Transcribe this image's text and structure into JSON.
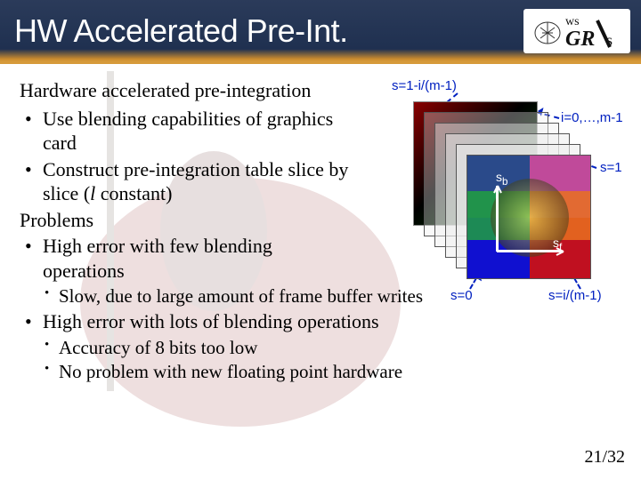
{
  "header": {
    "title": "HW Accelerated Pre-Int.",
    "logo_text_1": "ws",
    "logo_text_2": "GR",
    "logo_text_3": "s"
  },
  "body": {
    "intro": "Hardware accelerated pre-integration",
    "bullets_a": [
      "Use blending capabilities of graphics card",
      "Construct pre-integration table slice by slice (l constant)"
    ],
    "section2": "Problems",
    "bullets_b": [
      "High error with few blending operations"
    ],
    "sub_b": [
      "Slow, due to large amount of frame buffer writes"
    ],
    "bullets_c": [
      "High error with lots of blending operations"
    ],
    "sub_c": [
      "Accuracy of 8 bits too low",
      "No problem with new floating point hardware"
    ]
  },
  "diagram": {
    "label_top": "s=1-i/(m-1)",
    "label_right_top": "i=0,…,m-1",
    "label_right_mid": "s=1",
    "label_bottom_left": "s=0",
    "label_bottom_right": "s=i/(m-1)",
    "axis_y": "s",
    "axis_y_sub": "b",
    "axis_x": "s",
    "axis_x_sub": "f",
    "stack_count": 5,
    "front_colors": {
      "tl": "#2a4a8a",
      "tr": "#c04a9a",
      "ml": "#20a040",
      "mr": "#e87020",
      "bl": "#1010d0",
      "br": "#c01020",
      "ctr": "#e0e060"
    }
  },
  "footer": {
    "page": "21",
    "total": "32"
  },
  "colors": {
    "header_bg_top": "#2b3b5a",
    "header_bg_bottom": "#1f3050",
    "accent": "#d69a3a",
    "text": "#000000",
    "link_blue": "#0020c0"
  }
}
